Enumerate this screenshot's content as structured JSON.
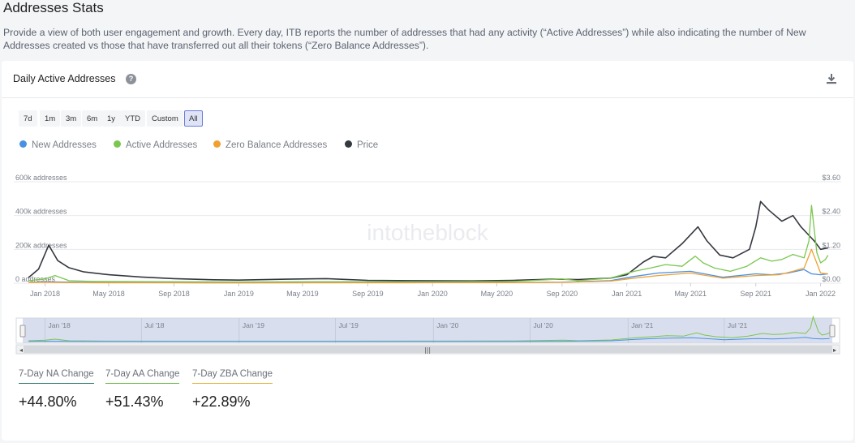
{
  "page": {
    "title": "Addresses Stats",
    "description": "Provide a view of both user engagement and growth. Every day, ITB reports the number of addresses that had any activity (“Active Addresses”) while also indicating the number of New Addresses created vs those that have transferred out all their tokens (“Zero Balance Addresses”)."
  },
  "card": {
    "title": "Daily Active Addresses",
    "help_glyph": "?",
    "watermark": "intotheblock"
  },
  "range_buttons": [
    "7d",
    "1m",
    "3m",
    "6m",
    "1y",
    "YTD",
    "Custom",
    "All"
  ],
  "range_selected": "All",
  "stats": [
    {
      "label": "7-Day NA Change",
      "value": "+44.80%",
      "color": "#2f7d6e"
    },
    {
      "label": "7-Day AA Change",
      "value": "+51.43%",
      "color": "#6dbb4a"
    },
    {
      "label": "7-Day ZBA Change",
      "value": "+22.89%",
      "color": "#e7b33a"
    }
  ],
  "colors": {
    "new_addresses": "#4a90e2",
    "active_addresses": "#7ac74f",
    "zero_balance": "#f0a030",
    "price": "#34383f",
    "navigator_fill": "#cfd6ea"
  },
  "chart_data": {
    "type": "line",
    "series": [
      {
        "name": "New Addresses",
        "color": "#4a90e2",
        "axis": "left",
        "x": [
          "2017-12-01",
          "2018-01-01",
          "2018-04-01",
          "2018-09-01",
          "2019-01-01",
          "2019-06-01",
          "2020-01-01",
          "2020-06-01",
          "2020-09-01",
          "2020-12-01",
          "2021-01-15",
          "2021-03-01",
          "2021-05-01",
          "2021-07-01",
          "2021-09-01",
          "2021-10-01",
          "2021-11-01",
          "2021-12-01",
          "2021-12-15",
          "2022-01-01",
          "2022-01-15"
        ],
        "values": [
          5000,
          8000,
          4000,
          3000,
          2500,
          3000,
          3500,
          4000,
          6000,
          15000,
          40000,
          60000,
          70000,
          35000,
          55000,
          50000,
          60000,
          80000,
          55000,
          50000,
          55000
        ]
      },
      {
        "name": "Active Addresses",
        "color": "#7ac74f",
        "axis": "left",
        "x": [
          "2017-12-01",
          "2018-01-01",
          "2018-01-20",
          "2018-02-15",
          "2018-04-01",
          "2018-09-01",
          "2019-01-01",
          "2019-06-01",
          "2020-01-01",
          "2020-06-01",
          "2020-09-01",
          "2020-10-01",
          "2020-12-01",
          "2021-01-15",
          "2021-02-15",
          "2021-03-15",
          "2021-04-15",
          "2021-05-10",
          "2021-05-25",
          "2021-06-15",
          "2021-07-15",
          "2021-08-15",
          "2021-09-10",
          "2021-10-01",
          "2021-10-20",
          "2021-11-10",
          "2021-12-01",
          "2021-12-10",
          "2021-12-15",
          "2021-12-25",
          "2022-01-01",
          "2022-01-10",
          "2022-01-15"
        ],
        "values": [
          15000,
          25000,
          45000,
          15000,
          10000,
          8000,
          7000,
          8000,
          9000,
          10000,
          25000,
          15000,
          30000,
          70000,
          90000,
          110000,
          100000,
          160000,
          120000,
          90000,
          70000,
          100000,
          150000,
          130000,
          140000,
          170000,
          150000,
          250000,
          460000,
          180000,
          120000,
          140000,
          165000
        ]
      },
      {
        "name": "Zero Balance Addresses",
        "color": "#f0a030",
        "axis": "left",
        "x": [
          "2017-12-01",
          "2018-01-01",
          "2018-03-01",
          "2018-09-01",
          "2019-01-01",
          "2019-06-01",
          "2020-01-01",
          "2020-06-01",
          "2020-09-01",
          "2020-12-01",
          "2021-01-15",
          "2021-03-01",
          "2021-05-01",
          "2021-07-01",
          "2021-09-01",
          "2021-10-15",
          "2021-11-10",
          "2021-12-01",
          "2021-12-15",
          "2022-01-01",
          "2022-01-15"
        ],
        "values": [
          4000,
          6000,
          3000,
          2500,
          2000,
          2500,
          3000,
          3500,
          5000,
          12000,
          30000,
          45000,
          60000,
          30000,
          45000,
          50000,
          70000,
          90000,
          200000,
          60000,
          55000
        ]
      },
      {
        "name": "Price",
        "color": "#34383f",
        "axis": "right",
        "x": [
          "2017-12-01",
          "2017-12-20",
          "2018-01-08",
          "2018-01-25",
          "2018-02-15",
          "2018-03-15",
          "2018-05-01",
          "2018-07-01",
          "2018-09-01",
          "2018-11-15",
          "2019-01-01",
          "2019-04-01",
          "2019-06-15",
          "2019-09-01",
          "2019-12-01",
          "2020-03-15",
          "2020-06-01",
          "2020-08-15",
          "2020-10-01",
          "2020-12-01",
          "2021-01-01",
          "2021-02-01",
          "2021-02-20",
          "2021-03-15",
          "2021-04-15",
          "2021-05-15",
          "2021-06-01",
          "2021-06-25",
          "2021-07-20",
          "2021-08-20",
          "2021-09-01",
          "2021-09-10",
          "2021-09-25",
          "2021-10-20",
          "2021-11-10",
          "2021-11-25",
          "2021-12-05",
          "2021-12-20",
          "2022-01-01",
          "2022-01-15"
        ],
        "values": [
          0.2,
          0.5,
          1.35,
          0.8,
          0.55,
          0.4,
          0.3,
          0.22,
          0.16,
          0.12,
          0.11,
          0.14,
          0.16,
          0.1,
          0.09,
          0.08,
          0.1,
          0.14,
          0.13,
          0.18,
          0.3,
          0.75,
          0.95,
          0.9,
          1.4,
          2.0,
          1.5,
          1.0,
          0.9,
          1.2,
          2.0,
          2.9,
          2.6,
          2.2,
          2.4,
          2.0,
          1.8,
          1.5,
          1.2,
          1.25
        ]
      }
    ],
    "x_range": [
      "2017-11-20",
      "2022-01-20"
    ],
    "x_ticks": [
      "Jan 2018",
      "May 2018",
      "Sep 2018",
      "Jan 2019",
      "May 2019",
      "Sep 2019",
      "Jan 2020",
      "May 2020",
      "Sep 2020",
      "Jan 2021",
      "May 2021",
      "Sep 2021",
      "Jan 2022"
    ],
    "x_tick_dates": [
      "2018-01-01",
      "2018-05-01",
      "2018-09-01",
      "2019-01-01",
      "2019-05-01",
      "2019-09-01",
      "2020-01-01",
      "2020-05-01",
      "2020-09-01",
      "2021-01-01",
      "2021-05-01",
      "2021-09-01",
      "2022-01-01"
    ],
    "y_left": {
      "ylim": [
        0,
        600000
      ],
      "ticks": [
        0,
        200000,
        400000,
        600000
      ],
      "tick_labels": [
        "0 addresses",
        "200k addresses",
        "400k addresses",
        "600k addresses"
      ]
    },
    "y_right": {
      "ylim": [
        0,
        3.6
      ],
      "ticks": [
        0,
        1.2,
        2.4,
        3.6
      ],
      "tick_labels": [
        "$0.00",
        "$1.20",
        "$2.40",
        "$3.60"
      ]
    },
    "navigator_ticks": [
      "Jan '18",
      "Jul '18",
      "Jan '19",
      "Jul '19",
      "Jan '20",
      "Jul '20",
      "Jan '21",
      "Jul '21"
    ],
    "navigator_tick_dates": [
      "2018-01-01",
      "2018-07-01",
      "2019-01-01",
      "2019-07-01",
      "2020-01-01",
      "2020-07-01",
      "2021-01-01",
      "2021-07-01"
    ],
    "grid": true,
    "legend_position": "top-left"
  }
}
